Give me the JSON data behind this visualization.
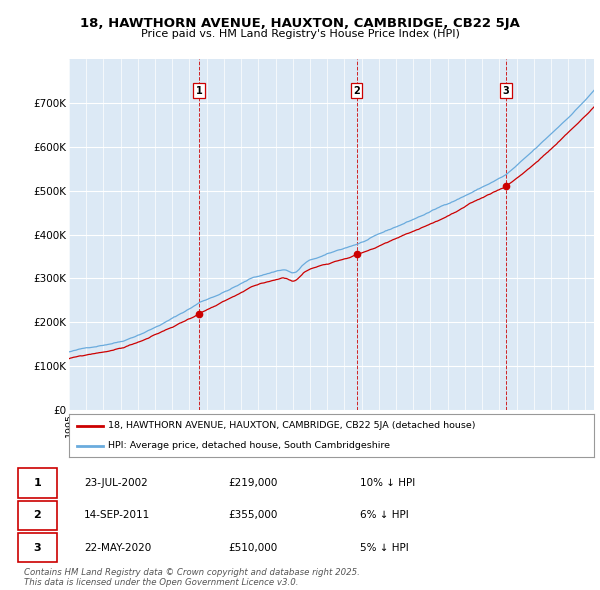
{
  "title1": "18, HAWTHORN AVENUE, HAUXTON, CAMBRIDGE, CB22 5JA",
  "title2": "Price paid vs. HM Land Registry's House Price Index (HPI)",
  "bg_color": "#dce9f5",
  "line1_color": "#cc0000",
  "line2_color": "#6aabdd",
  "sale1_date_num": 2002.56,
  "sale2_date_num": 2011.71,
  "sale3_date_num": 2020.38,
  "sale1_price": 219000,
  "sale2_price": 355000,
  "sale3_price": 510000,
  "legend1": "18, HAWTHORN AVENUE, HAUXTON, CAMBRIDGE, CB22 5JA (detached house)",
  "legend2": "HPI: Average price, detached house, South Cambridgeshire",
  "table_rows": [
    [
      "1",
      "23-JUL-2002",
      "£219,000",
      "10% ↓ HPI"
    ],
    [
      "2",
      "14-SEP-2011",
      "£355,000",
      "6% ↓ HPI"
    ],
    [
      "3",
      "22-MAY-2020",
      "£510,000",
      "5% ↓ HPI"
    ]
  ],
  "footer": "Contains HM Land Registry data © Crown copyright and database right 2025.\nThis data is licensed under the Open Government Licence v3.0.",
  "ylim_max": 800000,
  "yticks": [
    0,
    100000,
    200000,
    300000,
    400000,
    500000,
    600000,
    700000
  ],
  "ytick_labels": [
    "£0",
    "£100K",
    "£200K",
    "£300K",
    "£400K",
    "£500K",
    "£600K",
    "£700K"
  ],
  "xstart": 1995,
  "xend": 2025.5
}
